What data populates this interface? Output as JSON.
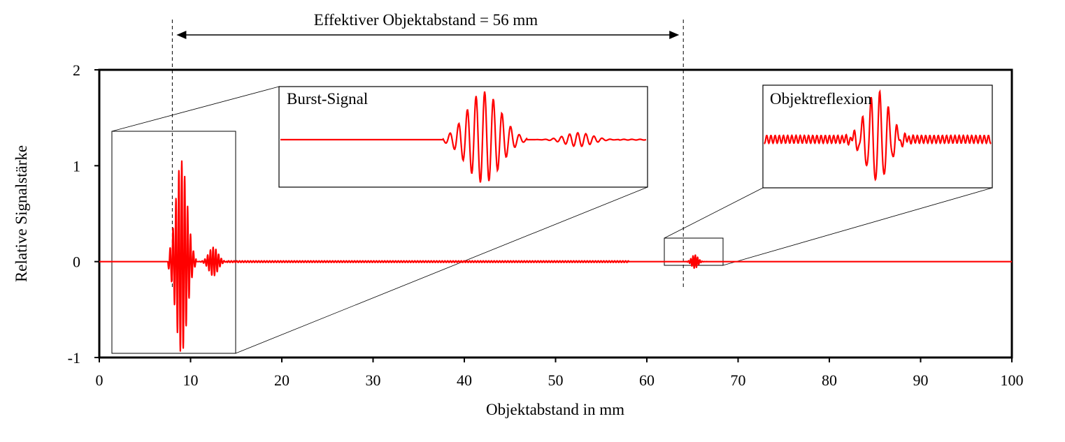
{
  "chart_data": {
    "type": "line",
    "title": "",
    "xlabel": "Objektabstand  in mm",
    "ylabel": "Relative Signalstärke",
    "xlim": [
      0,
      100
    ],
    "ylim": [
      -1,
      2
    ],
    "x_ticks": [
      "0",
      "10",
      "20",
      "30",
      "40",
      "50",
      "60",
      "70",
      "80",
      "90",
      "100"
    ],
    "y_ticks": [
      "-1",
      "0",
      "1",
      "2"
    ],
    "grid": false,
    "legend": "none",
    "baseline": 0,
    "series": [
      {
        "color": "#ff0000",
        "baseline": 0,
        "features": [
          {
            "kind": "burst",
            "x_start": 8.0,
            "x_end": 10.0,
            "peak_max": 1.05,
            "peak_min": -0.95
          },
          {
            "kind": "echo",
            "x_start": 11.5,
            "x_end": 13.5,
            "peak_max": 0.15,
            "peak_min": -0.12
          },
          {
            "kind": "reflection",
            "x_start": 64.5,
            "x_end": 66.0,
            "peak_max": 0.07,
            "peak_min": -0.07
          }
        ]
      }
    ],
    "annotations": [
      {
        "text": "Effektiver  Objektabstand   = 56 mm",
        "x_from": 8,
        "x_to": 64,
        "value_mm": 56
      }
    ],
    "insets": [
      {
        "title": "Burst-Signal",
        "zoom_of_x": [
          1.5,
          15
        ]
      },
      {
        "title": "Objektreflexion",
        "zoom_of_x": [
          62,
          68.5
        ]
      }
    ]
  }
}
